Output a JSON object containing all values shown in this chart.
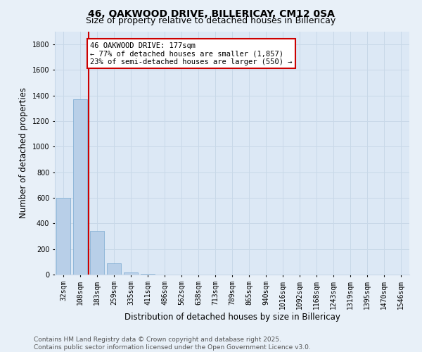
{
  "title": "46, OAKWOOD DRIVE, BILLERICAY, CM12 0SA",
  "subtitle": "Size of property relative to detached houses in Billericay",
  "xlabel": "Distribution of detached houses by size in Billericay",
  "ylabel": "Number of detached properties",
  "annotation_title": "46 OAKWOOD DRIVE: 177sqm",
  "annotation_line1": "← 77% of detached houses are smaller (1,857)",
  "annotation_line2": "23% of semi-detached houses are larger (550) →",
  "footer_line1": "Contains HM Land Registry data © Crown copyright and database right 2025.",
  "footer_line2": "Contains public sector information licensed under the Open Government Licence v3.0.",
  "categories": [
    "32sqm",
    "108sqm",
    "183sqm",
    "259sqm",
    "335sqm",
    "411sqm",
    "486sqm",
    "562sqm",
    "638sqm",
    "713sqm",
    "789sqm",
    "865sqm",
    "940sqm",
    "1016sqm",
    "1092sqm",
    "1168sqm",
    "1243sqm",
    "1319sqm",
    "1395sqm",
    "1470sqm",
    "1546sqm"
  ],
  "values": [
    600,
    1370,
    340,
    90,
    15,
    5,
    2,
    1,
    0,
    0,
    0,
    0,
    0,
    0,
    0,
    0,
    0,
    0,
    0,
    0,
    0
  ],
  "bar_color": "#b8cfe8",
  "bar_edge_color": "#7aaad0",
  "property_line_color": "#cc0000",
  "property_line_x": 1.5,
  "ylim": [
    0,
    1900
  ],
  "yticks": [
    0,
    200,
    400,
    600,
    800,
    1000,
    1200,
    1400,
    1600,
    1800
  ],
  "bg_color": "#e8f0f8",
  "plot_bg_color": "#dce8f5",
  "annotation_box_color": "#ffffff",
  "annotation_box_edge": "#cc0000",
  "title_fontsize": 10,
  "subtitle_fontsize": 9,
  "axis_label_fontsize": 8.5,
  "tick_fontsize": 7,
  "annotation_fontsize": 7.5,
  "footer_fontsize": 6.5,
  "grid_color": "#c8d8e8"
}
